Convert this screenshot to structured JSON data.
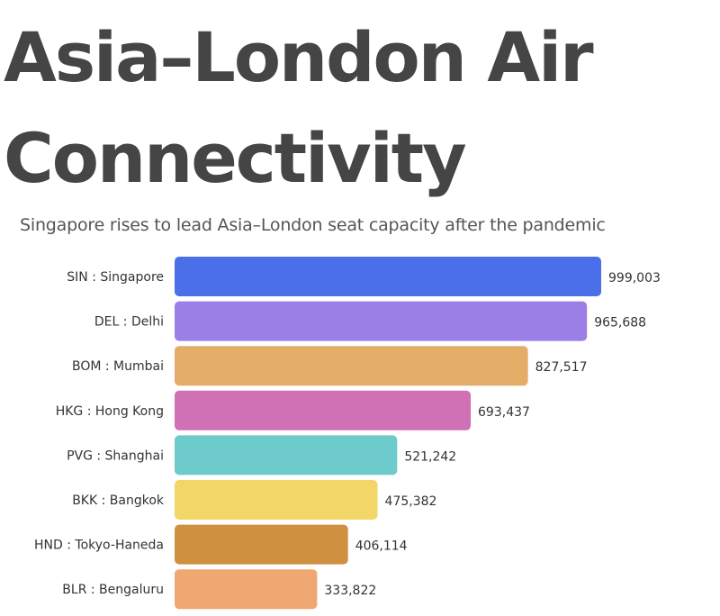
{
  "chart_data": {
    "type": "bar",
    "orientation": "horizontal",
    "title_lines": [
      "Asia–London Air",
      "Connectivity"
    ],
    "subtitle": "Singapore rises to lead Asia–London seat capacity after the pandemic",
    "categories": [
      "SIN : Singapore",
      "DEL : Delhi",
      "BOM : Mumbai",
      "HKG : Hong Kong",
      "PVG : Shanghai",
      "BKK : Bangkok",
      "HND : Tokyo-Haneda",
      "BLR : Bengaluru"
    ],
    "values": [
      999003,
      965688,
      827517,
      693437,
      521242,
      475382,
      406114,
      333822
    ],
    "value_labels": [
      "999,003",
      "965,688",
      "827,517",
      "693,437",
      "521,242",
      "475,382",
      "406,114",
      "333,822"
    ],
    "colors": [
      "#4a6fe8",
      "#9b7fe6",
      "#e3ad68",
      "#d070b5",
      "#6ecbcb",
      "#f3d668",
      "#cf9140",
      "#f0a872"
    ],
    "xlim": [
      0,
      999003
    ],
    "grid": false,
    "legend": "none"
  }
}
